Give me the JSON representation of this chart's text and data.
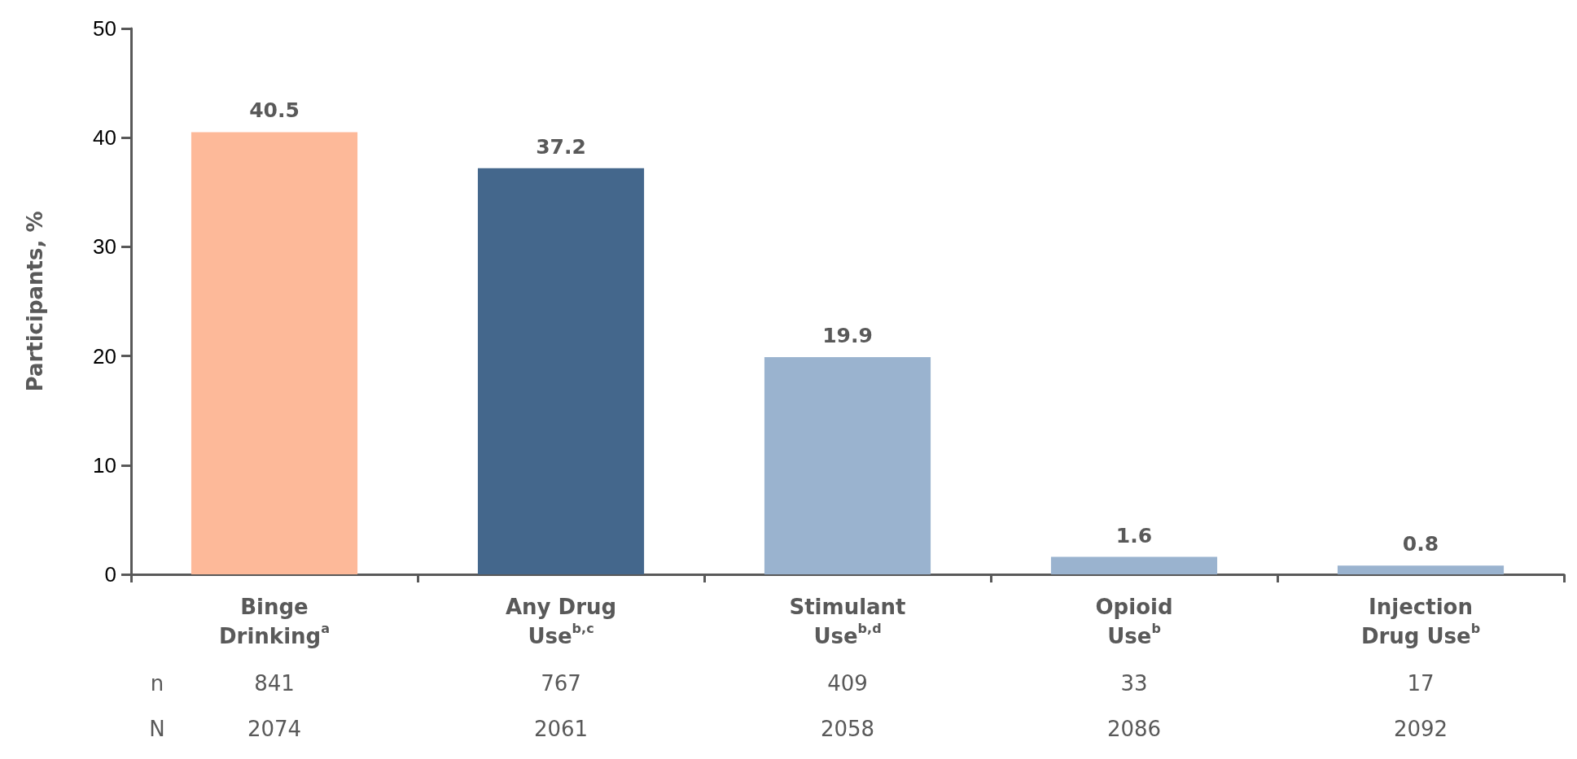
{
  "chart_data": {
    "type": "bar",
    "categories": [
      "Binge\nDrinking$^{a}$",
      "Any Drug\nUse$^{b,c}$",
      "Stimulant\nUse$^{b,d}$",
      "Opioid\nUse$^{b}$",
      "Injection\nDrug Use$^{b}$"
    ],
    "values": [
      40.5,
      37.2,
      19.9,
      1.6,
      0.8
    ],
    "colors": [
      "#fdb999",
      "#44678c",
      "#9ab3cf",
      "#9ab3cf",
      "#9ab3cf"
    ],
    "ylabel": "Participants, %",
    "ylim": [
      0,
      50
    ],
    "yticks": [
      0,
      10,
      20,
      30,
      40,
      50
    ],
    "data_labels": true,
    "grid": false,
    "annotations": [
      "n",
      "841",
      "767",
      "409",
      "33",
      "17",
      "N",
      "2074",
      "2061",
      "2058",
      "2086",
      "2092"
    ]
  }
}
